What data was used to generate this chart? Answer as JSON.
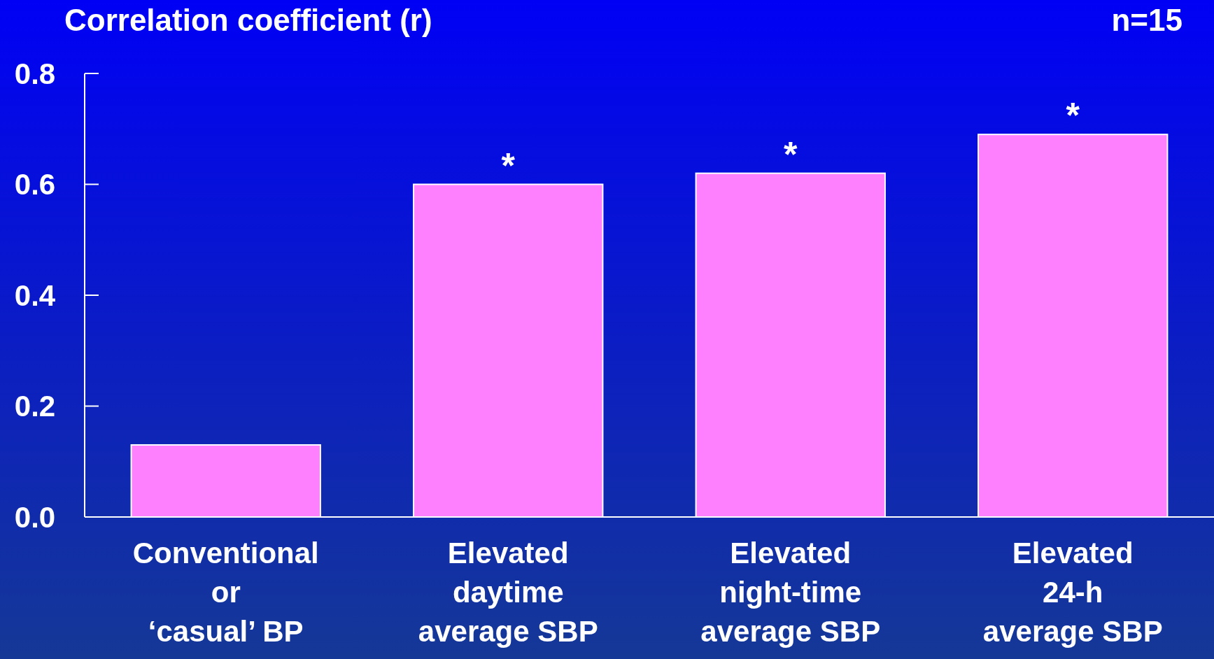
{
  "chart_data": {
    "type": "bar",
    "ylabel": "Correlation coefficient (r)",
    "categories": [
      "Conventional\nor\n‘casual’ BP",
      "Elevated\ndaytime\naverage SBP",
      "Elevated\nnight-time\naverage SBP",
      "Elevated\n24-h\naverage SBP"
    ],
    "values": [
      0.13,
      0.6,
      0.62,
      0.69
    ],
    "color": "#ff80ff",
    "ylim": [
      0,
      0.8
    ],
    "yticks": [
      {
        "value": 0,
        "label": "0.0"
      },
      {
        "value": 0.2,
        "label": "0.2"
      },
      {
        "value": 0.4,
        "label": "0.4"
      },
      {
        "value": 0.6,
        "label": "0.6"
      },
      {
        "value": 0.8,
        "label": "0.8"
      }
    ],
    "annotations": [
      {
        "text": "*",
        "x": "Elevated\ndaytime\naverage SBP",
        "y": 0.6
      },
      {
        "text": "*",
        "x": "Elevated\nnight-time\naverage SBP",
        "y": 0.62
      },
      {
        "text": "*",
        "x": "Elevated\n24-h\naverage SBP",
        "y": 0.69
      },
      "n=15"
    ]
  }
}
